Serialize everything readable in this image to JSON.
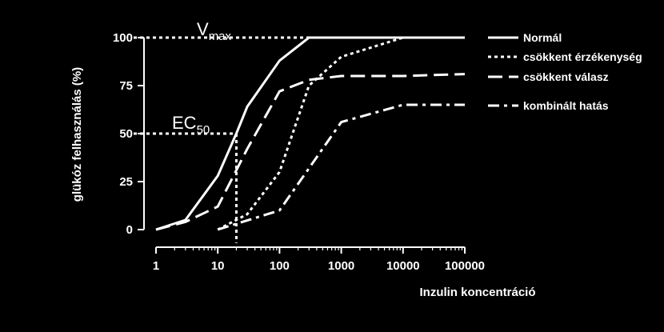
{
  "chart_data": {
    "type": "line",
    "xlabel": "Inzulin koncentráció",
    "ylabel": "glükóz felhasználás (%)",
    "xscale": "log",
    "xlim": [
      1,
      100000
    ],
    "ylim": [
      0,
      100
    ],
    "x_ticks": [
      1,
      10,
      100,
      1000,
      10000,
      100000
    ],
    "x_tick_labels": [
      "1",
      "10",
      "100",
      "1000",
      "10000",
      "100000"
    ],
    "y_ticks": [
      0,
      25,
      50,
      75,
      100
    ],
    "y_tick_labels": [
      "0",
      "25",
      "50",
      "75",
      "100"
    ],
    "grid": false,
    "legend_position": "right",
    "series": [
      {
        "name": "Normál",
        "style": "solid",
        "color": "#ffffff",
        "x": [
          1,
          3,
          10,
          20,
          30,
          100,
          300,
          1000,
          10000,
          100000
        ],
        "y": [
          0,
          5,
          28,
          50,
          64,
          88,
          100,
          100,
          100,
          100
        ]
      },
      {
        "name": "csökkent érzékenység",
        "style": "dotted",
        "color": "#ffffff",
        "x": [
          10,
          30,
          100,
          300,
          1000,
          10000,
          100000
        ],
        "y": [
          0,
          8,
          30,
          75,
          90,
          100,
          100
        ]
      },
      {
        "name": "csökkent válasz",
        "style": "dashed",
        "color": "#ffffff",
        "x": [
          1,
          3,
          10,
          30,
          100,
          300,
          1000,
          10000,
          100000
        ],
        "y": [
          0,
          4,
          12,
          42,
          72,
          78,
          80,
          80,
          81
        ]
      },
      {
        "name": "kombinált hatás",
        "style": "dashdot",
        "color": "#ffffff",
        "x": [
          10,
          100,
          1000,
          10000,
          100000
        ],
        "y": [
          0,
          10,
          56,
          65,
          65
        ]
      }
    ],
    "annotations": [
      {
        "text_main": "V",
        "text_sub": "max",
        "type": "hline",
        "y": 100,
        "x_from": 1,
        "x_to": 300
      },
      {
        "text_main": "EC",
        "text_sub": "50",
        "type": "hline",
        "y": 50,
        "x_from": 1,
        "x_to": 20
      },
      {
        "type": "vline",
        "x": 20,
        "y_from": 50,
        "y_to": -7
      }
    ]
  }
}
